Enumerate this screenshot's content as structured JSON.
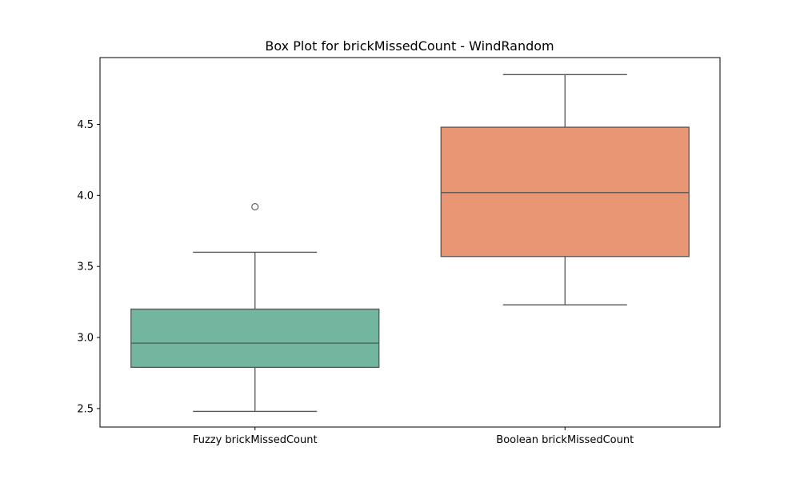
{
  "chart_data": {
    "type": "box",
    "title": "Box Plot for brickMissedCount - WindRandom",
    "xlabel": "",
    "ylabel": "",
    "ylim": [
      2.37,
      4.97
    ],
    "yticks": [
      2.5,
      3.0,
      3.5,
      4.0,
      4.5
    ],
    "ytick_labels": [
      "2.5",
      "3.0",
      "3.5",
      "4.0",
      "4.5"
    ],
    "grid": false,
    "categories": [
      "Fuzzy brickMissedCount",
      "Boolean brickMissedCount"
    ],
    "boxes": [
      {
        "category": "Fuzzy brickMissedCount",
        "whisker_low": 2.48,
        "q1": 2.79,
        "median": 2.96,
        "q3": 3.2,
        "whisker_high": 3.6,
        "outliers": [
          3.92
        ],
        "color": "#73b6a0"
      },
      {
        "category": "Boolean brickMissedCount",
        "whisker_low": 3.23,
        "q1": 3.57,
        "median": 4.02,
        "q3": 4.48,
        "whisker_high": 4.85,
        "outliers": [],
        "color": "#e99675"
      }
    ]
  }
}
